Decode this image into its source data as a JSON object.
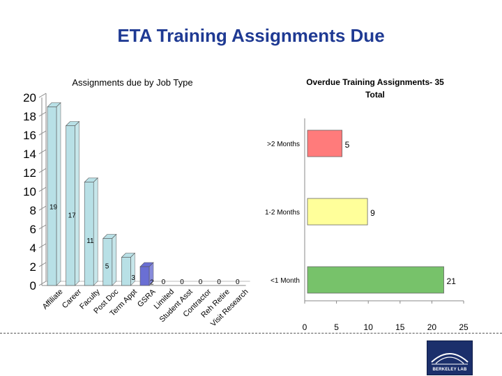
{
  "title": "ETA Training Assignments Due",
  "logo": {
    "text": "BERKELEY LAB"
  },
  "chart_data": [
    {
      "type": "bar",
      "title": "Assignments due by Job Type",
      "categories": [
        "Affiliate",
        "Career",
        "Faculty",
        "Post Doc",
        "Term Appt",
        "GSRA",
        "Limited",
        "Student Asst",
        "Contractor",
        "Reh Retire",
        "Visit Research"
      ],
      "values": [
        19,
        17,
        11,
        5,
        3,
        2,
        0,
        0,
        0,
        0,
        0
      ],
      "ylim": [
        0,
        20
      ],
      "yticks": [
        0,
        2,
        4,
        6,
        8,
        10,
        12,
        14,
        16,
        18,
        20
      ],
      "grid": false,
      "colors": [
        "#b8e0e6",
        "#b8e0e6",
        "#b8e0e6",
        "#b8e0e6",
        "#b8e0e6",
        "#6a6fd4",
        "#b8e0e6",
        "#b8e0e6",
        "#b8e0e6",
        "#b8e0e6",
        "#b8e0e6"
      ]
    },
    {
      "type": "bar",
      "orientation": "horizontal",
      "title": "Overdue Training Assignments- 35 Total",
      "categories": [
        ">2 Months",
        "1-2 Months",
        "<1 Month"
      ],
      "values": [
        5,
        9,
        21
      ],
      "xlim": [
        0,
        25
      ],
      "xticks": [
        0,
        5,
        10,
        15,
        20,
        25
      ],
      "grid": false,
      "colors": [
        "#ff7b7b",
        "#ffff9a",
        "#77c26a"
      ]
    }
  ]
}
